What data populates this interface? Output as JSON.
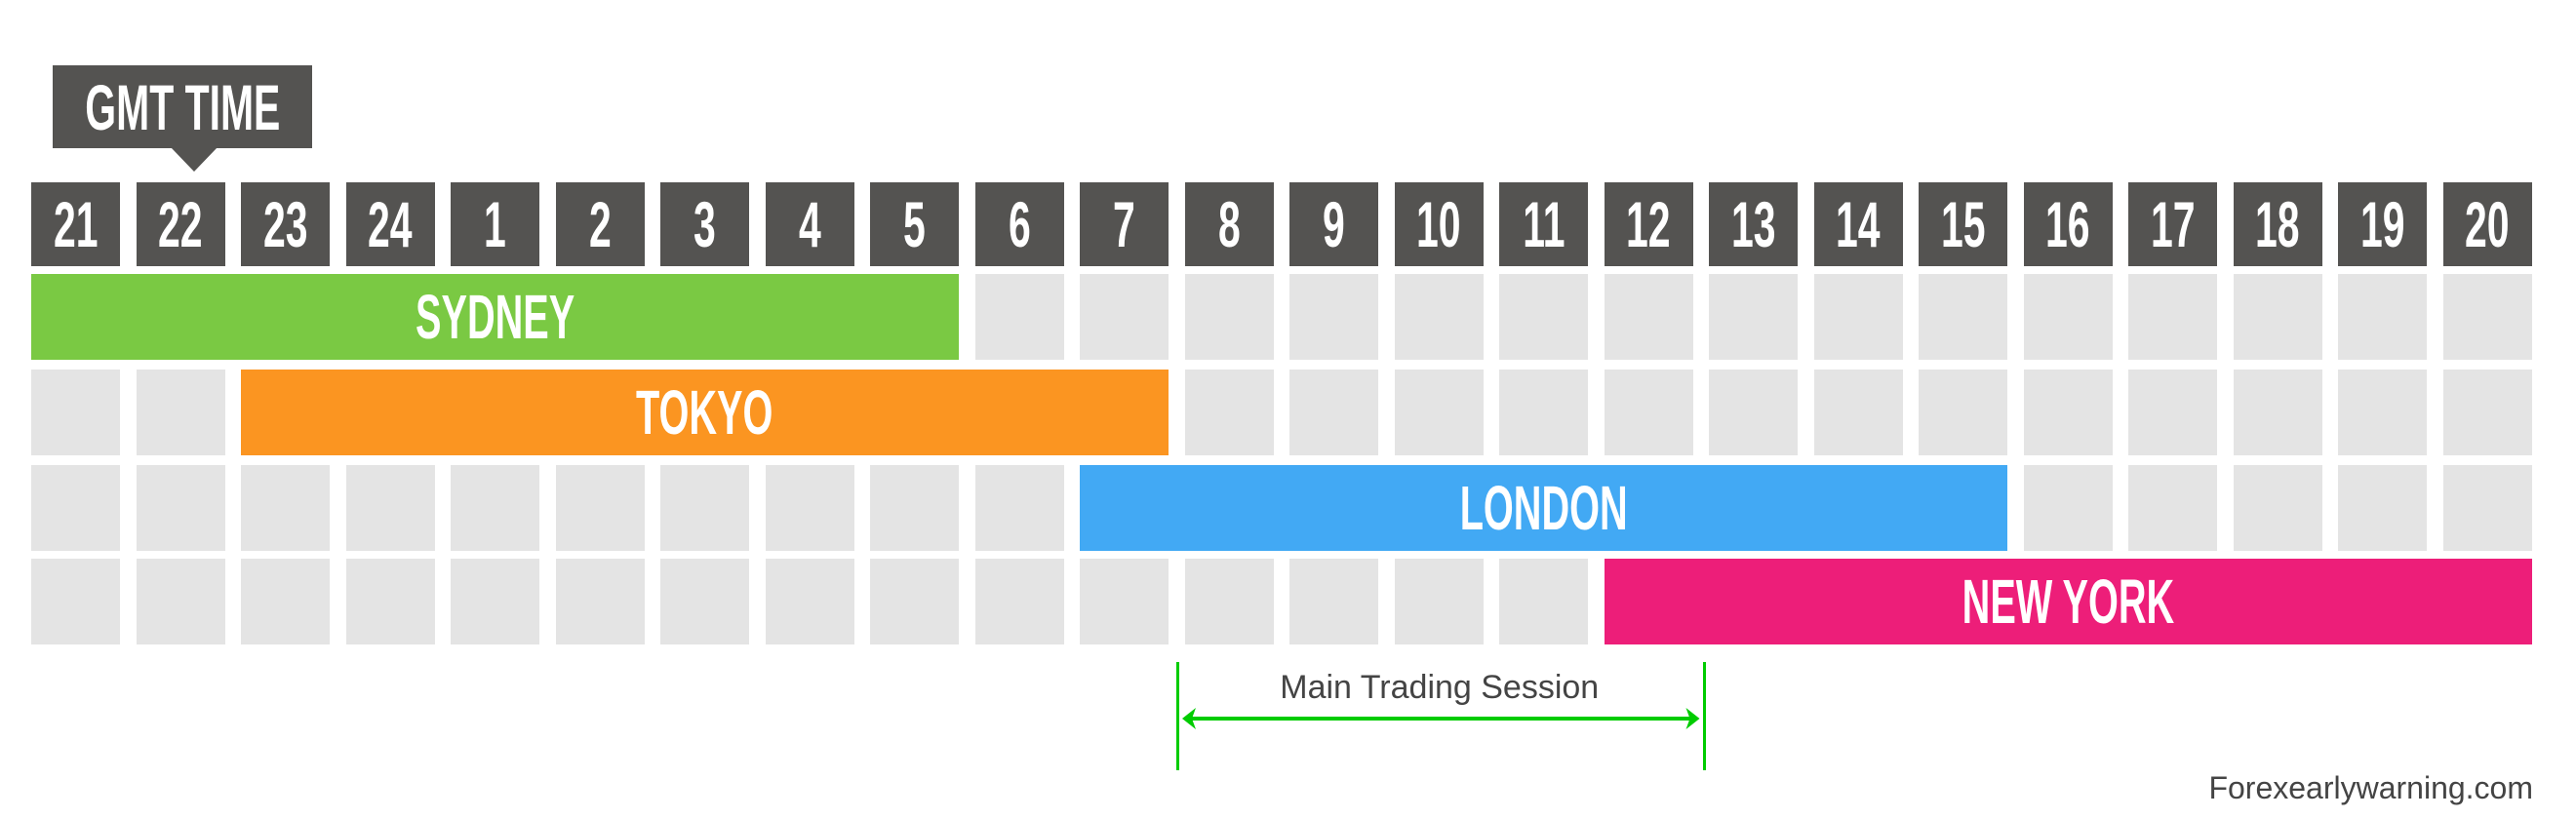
{
  "label": "GMT TIME",
  "hours": [
    "21",
    "22",
    "23",
    "24",
    "1",
    "2",
    "3",
    "4",
    "5",
    "6",
    "7",
    "8",
    "9",
    "10",
    "11",
    "12",
    "13",
    "14",
    "15",
    "16",
    "17",
    "18",
    "19",
    "20"
  ],
  "sessions": [
    {
      "name": "SYDNEY",
      "start": "21",
      "end": "5",
      "color": "#7ac943"
    },
    {
      "name": "TOKYO",
      "start": "23",
      "end": "7",
      "color": "#fb9521"
    },
    {
      "name": "LONDON",
      "start": "7",
      "end": "15",
      "color": "#42a9f4"
    },
    {
      "name": "NEW YORK",
      "start": "12",
      "end": "20",
      "color": "#ed1e79"
    }
  ],
  "main_session": {
    "label": "Main Trading Session",
    "start": "8",
    "end": "13",
    "color": "#00cc00"
  },
  "footer": "Forexearlywarning.com"
}
